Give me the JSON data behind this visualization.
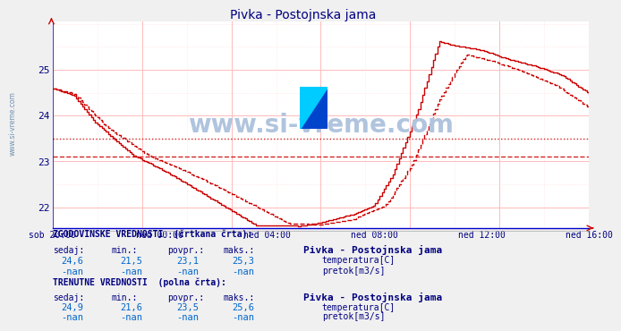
{
  "title": "Pivka - Postojnska jama",
  "title_color": "#000080",
  "bg_color": "#f0f0f0",
  "plot_bg_color": "#ffffff",
  "line_color_solid": "#cc0000",
  "line_color_dashed": "#cc0000",
  "watermark": "www.si-vreme.com",
  "watermark_color": "#b0c4de",
  "sidebar_text": "www.si-vreme.com",
  "sidebar_color": "#7090b0",
  "x_labels": [
    "sob 20:00",
    "ned 00:00",
    "ned 04:00",
    "ned 08:00",
    "ned 12:00",
    "ned 16:00"
  ],
  "y_min": 21.55,
  "y_max": 26.05,
  "y_ticks": [
    22,
    23,
    24,
    25
  ],
  "hline_avg_hist": 23.1,
  "hline_avg_curr": 23.5,
  "legend_temp_color": "#cc0000",
  "legend_flow_color": "#00aa00",
  "info_text_color": "#000080",
  "info_value_color": "#0066cc",
  "hist_sedaj": "24,6",
  "hist_min": "21,5",
  "hist_povpr": "23,1",
  "hist_maks": "25,3",
  "curr_sedaj": "24,9",
  "curr_min": "21,6",
  "curr_povpr": "23,5",
  "curr_maks": "25,6",
  "n_points": 252
}
